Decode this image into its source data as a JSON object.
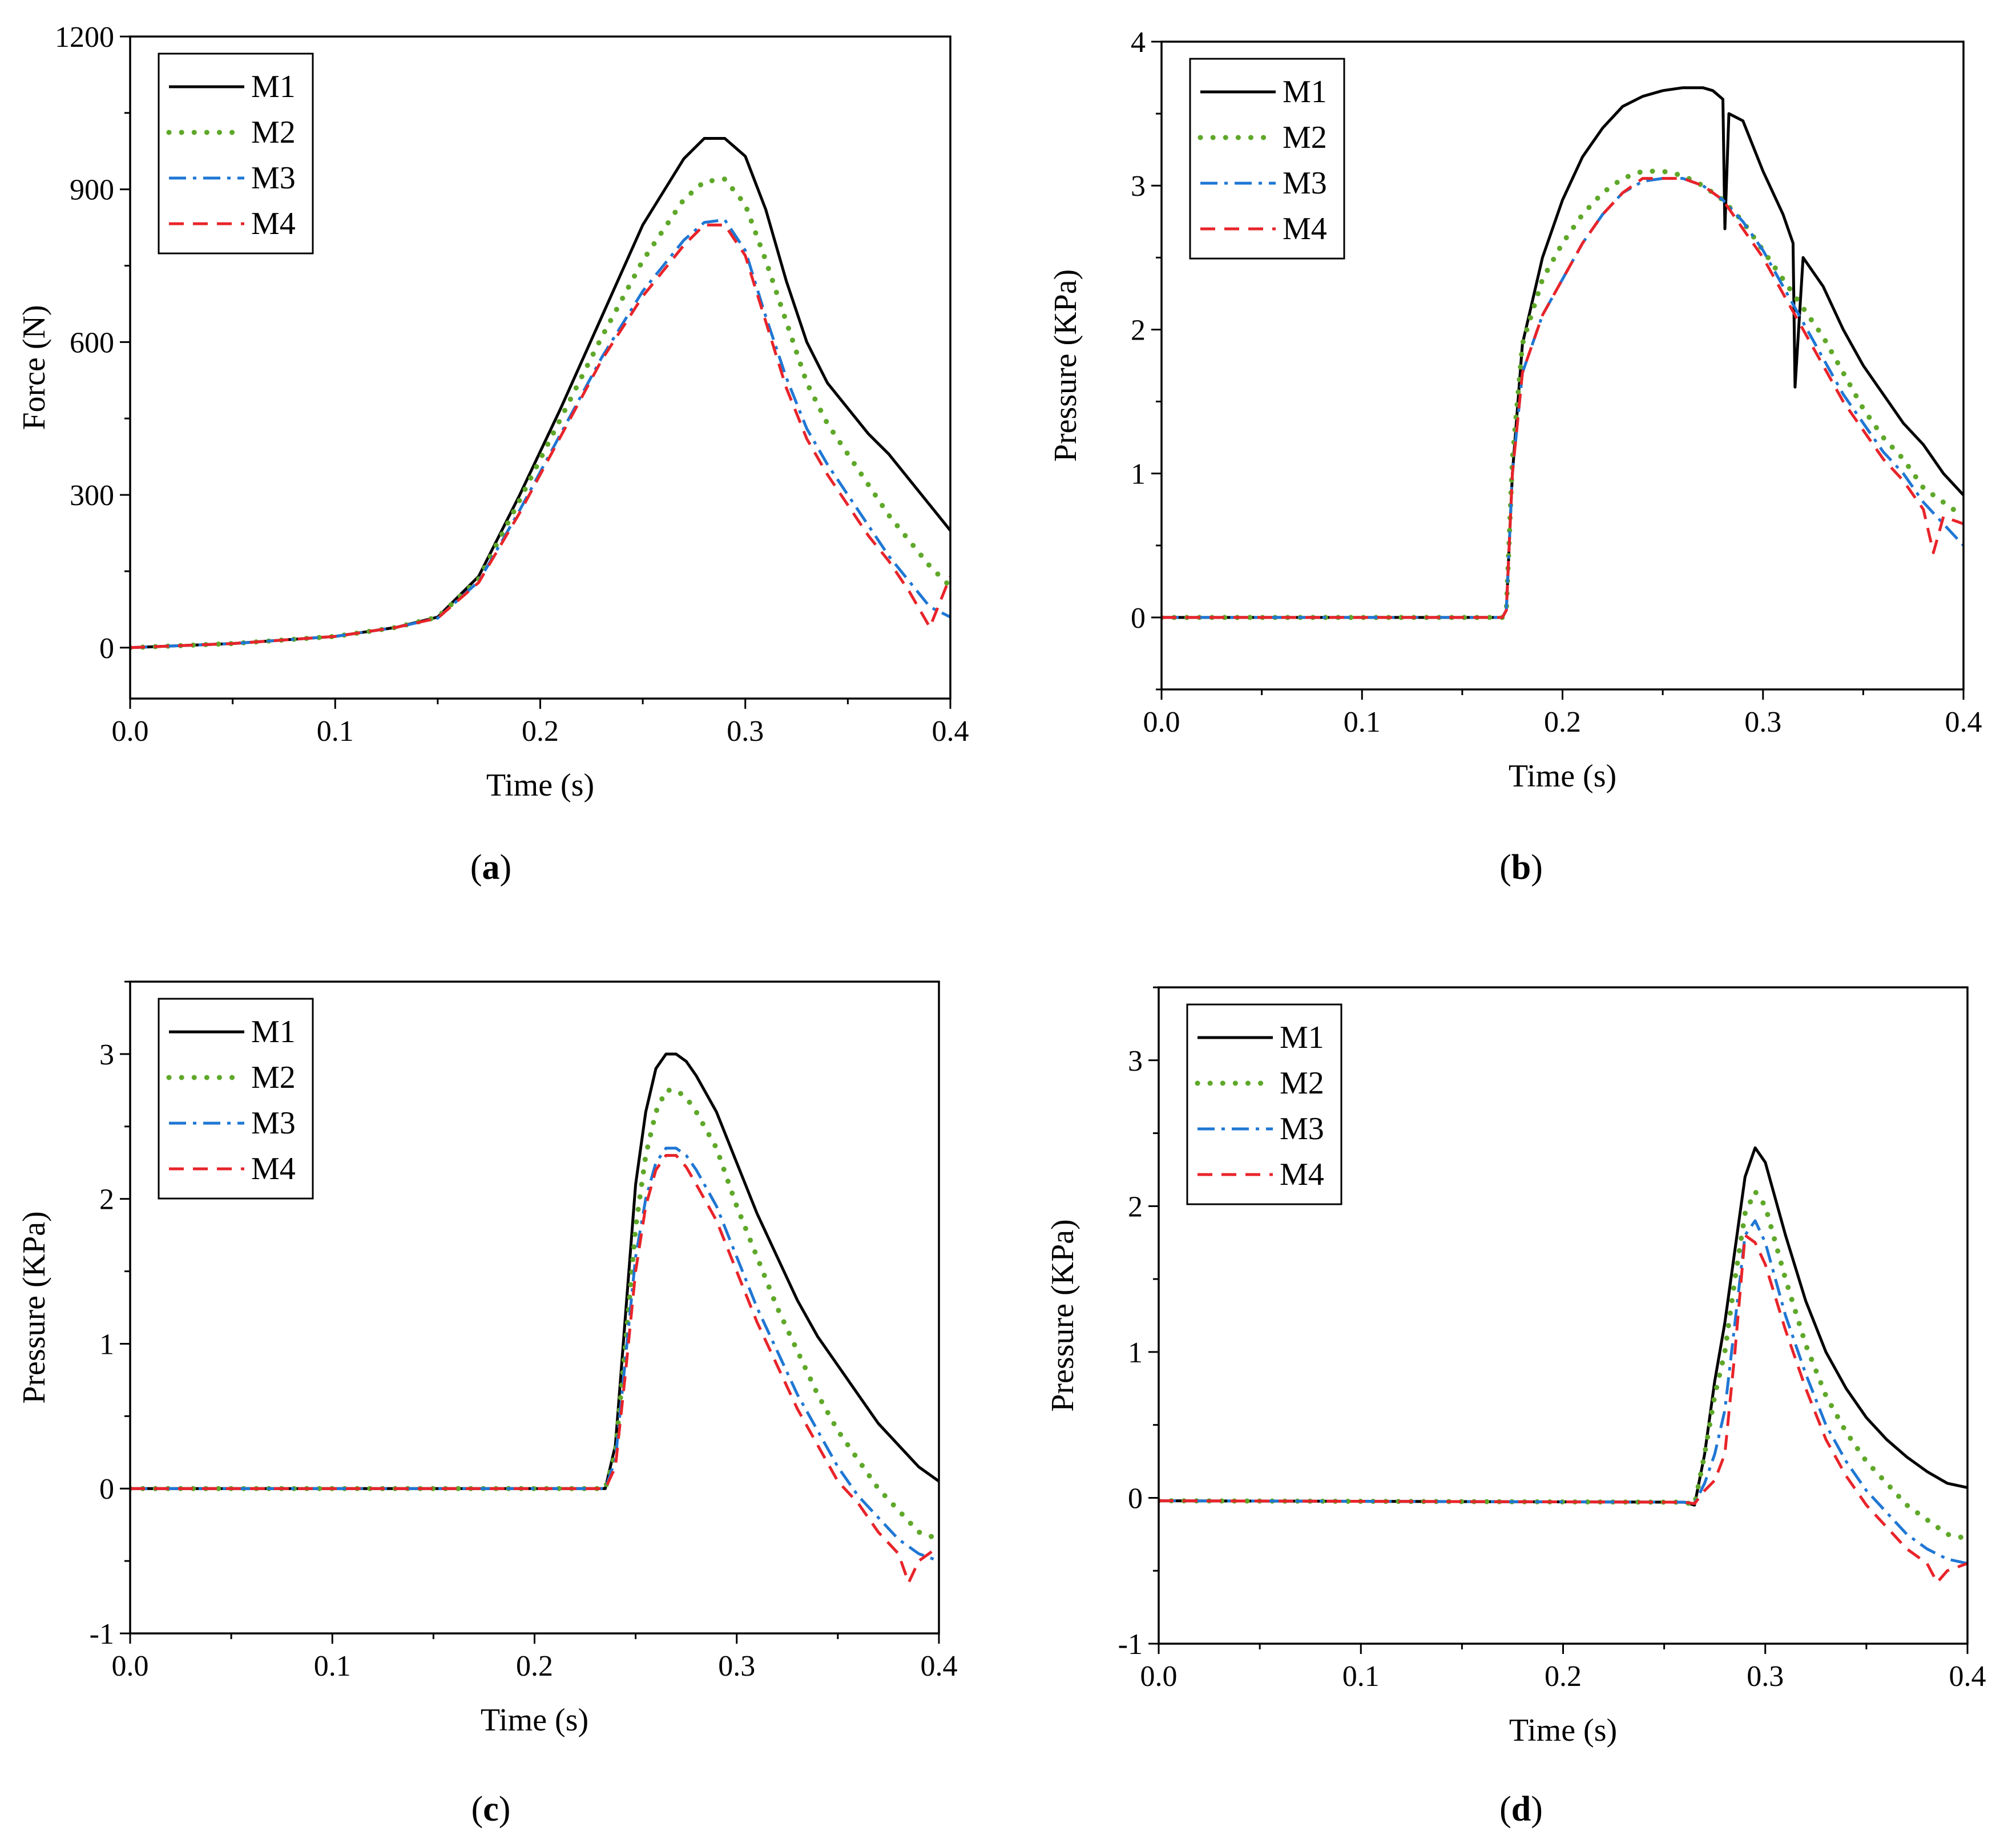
{
  "colors": {
    "M1": "#000000",
    "M2": "#5fa82a",
    "M3": "#1f77d4",
    "M4": "#e8242a"
  },
  "chart_data": [
    {
      "id": "a",
      "type": "line",
      "caption": "(a)",
      "caption_letter": "a",
      "xlabel": "Time (s)",
      "ylabel": "Force (N)",
      "xlim": [
        0,
        0.4
      ],
      "ylim": [
        -100,
        1200
      ],
      "xticks": [
        0.0,
        0.1,
        0.2,
        0.3,
        0.4
      ],
      "xtick_labels": [
        "0.0",
        "0.1",
        "0.2",
        "0.3",
        "0.4"
      ],
      "yticks": [
        0,
        300,
        600,
        900,
        1200
      ],
      "ytick_labels": [
        "0",
        "300",
        "600",
        "900",
        "1200"
      ],
      "legend": [
        "M1",
        "M2",
        "M3",
        "M4"
      ],
      "legend_position": "top-left",
      "series": [
        {
          "name": "M1",
          "x": [
            0,
            0.05,
            0.1,
            0.13,
            0.15,
            0.17,
            0.19,
            0.21,
            0.23,
            0.25,
            0.27,
            0.28,
            0.29,
            0.3,
            0.31,
            0.32,
            0.33,
            0.34,
            0.35,
            0.36,
            0.37,
            0.38,
            0.39,
            0.4
          ],
          "y": [
            0,
            8,
            22,
            40,
            60,
            140,
            300,
            470,
            650,
            830,
            960,
            1000,
            1000,
            965,
            860,
            720,
            600,
            520,
            470,
            420,
            380,
            330,
            280,
            230
          ]
        },
        {
          "name": "M2",
          "x": [
            0,
            0.05,
            0.1,
            0.13,
            0.15,
            0.17,
            0.19,
            0.21,
            0.23,
            0.25,
            0.27,
            0.28,
            0.29,
            0.3,
            0.31,
            0.32,
            0.33,
            0.34,
            0.35,
            0.36,
            0.37,
            0.38,
            0.39,
            0.4
          ],
          "y": [
            0,
            8,
            22,
            40,
            60,
            135,
            290,
            450,
            610,
            760,
            880,
            915,
            920,
            870,
            760,
            640,
            520,
            440,
            380,
            320,
            260,
            210,
            160,
            120
          ]
        },
        {
          "name": "M3",
          "x": [
            0,
            0.05,
            0.1,
            0.13,
            0.15,
            0.17,
            0.19,
            0.21,
            0.23,
            0.25,
            0.27,
            0.28,
            0.29,
            0.3,
            0.31,
            0.32,
            0.33,
            0.34,
            0.35,
            0.36,
            0.37,
            0.38,
            0.39,
            0.4
          ],
          "y": [
            0,
            8,
            22,
            40,
            58,
            130,
            270,
            420,
            570,
            700,
            800,
            835,
            840,
            780,
            650,
            530,
            430,
            360,
            300,
            240,
            180,
            130,
            80,
            60
          ]
        },
        {
          "name": "M4",
          "x": [
            0,
            0.05,
            0.1,
            0.13,
            0.15,
            0.17,
            0.19,
            0.21,
            0.23,
            0.25,
            0.27,
            0.28,
            0.29,
            0.3,
            0.31,
            0.32,
            0.33,
            0.34,
            0.35,
            0.36,
            0.37,
            0.38,
            0.39,
            0.4
          ],
          "y": [
            0,
            8,
            22,
            40,
            58,
            128,
            265,
            415,
            565,
            690,
            790,
            830,
            830,
            770,
            640,
            510,
            410,
            340,
            280,
            220,
            170,
            110,
            40,
            140
          ]
        }
      ]
    },
    {
      "id": "b",
      "type": "line",
      "caption": "(b)",
      "caption_letter": "b",
      "xlabel": "Time (s)",
      "ylabel": "Pressure (KPa)",
      "xlim": [
        0,
        0.4
      ],
      "ylim": [
        -0.5,
        4
      ],
      "xticks": [
        0.0,
        0.1,
        0.2,
        0.3,
        0.4
      ],
      "xtick_labels": [
        "0.0",
        "0.1",
        "0.2",
        "0.3",
        "0.4"
      ],
      "yticks": [
        0,
        1,
        2,
        3,
        4
      ],
      "ytick_labels": [
        "0",
        "1",
        "2",
        "3",
        "4"
      ],
      "legend": [
        "M1",
        "M2",
        "M3",
        "M4"
      ],
      "legend_position": "top-left",
      "series": [
        {
          "name": "M1",
          "x": [
            0,
            0.17,
            0.172,
            0.175,
            0.18,
            0.19,
            0.2,
            0.21,
            0.22,
            0.23,
            0.24,
            0.25,
            0.26,
            0.27,
            0.275,
            0.28,
            0.281,
            0.283,
            0.29,
            0.3,
            0.31,
            0.315,
            0.316,
            0.32,
            0.33,
            0.34,
            0.35,
            0.36,
            0.37,
            0.38,
            0.39,
            0.4
          ],
          "y": [
            0,
            0,
            0.05,
            1.0,
            1.9,
            2.5,
            2.9,
            3.2,
            3.4,
            3.55,
            3.62,
            3.66,
            3.68,
            3.68,
            3.66,
            3.6,
            2.7,
            3.5,
            3.45,
            3.1,
            2.8,
            2.6,
            1.6,
            2.5,
            2.3,
            2.0,
            1.75,
            1.55,
            1.35,
            1.2,
            1.0,
            0.85
          ]
        },
        {
          "name": "M2",
          "x": [
            0,
            0.17,
            0.172,
            0.175,
            0.18,
            0.19,
            0.2,
            0.21,
            0.22,
            0.23,
            0.24,
            0.25,
            0.26,
            0.27,
            0.28,
            0.29,
            0.3,
            0.31,
            0.32,
            0.33,
            0.34,
            0.35,
            0.36,
            0.37,
            0.38,
            0.39,
            0.4
          ],
          "y": [
            0,
            0,
            0.05,
            1.1,
            1.9,
            2.35,
            2.6,
            2.8,
            2.95,
            3.05,
            3.1,
            3.1,
            3.07,
            3.0,
            2.9,
            2.75,
            2.55,
            2.35,
            2.15,
            1.95,
            1.7,
            1.45,
            1.25,
            1.1,
            0.9,
            0.8,
            0.7
          ]
        },
        {
          "name": "M3",
          "x": [
            0,
            0.17,
            0.172,
            0.175,
            0.18,
            0.19,
            0.2,
            0.21,
            0.22,
            0.23,
            0.24,
            0.25,
            0.26,
            0.27,
            0.28,
            0.29,
            0.3,
            0.31,
            0.32,
            0.33,
            0.34,
            0.35,
            0.36,
            0.37,
            0.38,
            0.39,
            0.4
          ],
          "y": [
            0,
            0,
            0.05,
            1.0,
            1.7,
            2.1,
            2.35,
            2.6,
            2.8,
            2.95,
            3.03,
            3.05,
            3.05,
            3.0,
            2.9,
            2.75,
            2.55,
            2.3,
            2.05,
            1.8,
            1.55,
            1.35,
            1.15,
            1.0,
            0.8,
            0.65,
            0.5
          ]
        },
        {
          "name": "M4",
          "x": [
            0,
            0.17,
            0.172,
            0.175,
            0.18,
            0.19,
            0.2,
            0.21,
            0.22,
            0.23,
            0.24,
            0.25,
            0.26,
            0.27,
            0.28,
            0.29,
            0.3,
            0.31,
            0.32,
            0.33,
            0.34,
            0.35,
            0.36,
            0.37,
            0.38,
            0.385,
            0.39,
            0.4
          ],
          "y": [
            0,
            0,
            0.05,
            1.0,
            1.7,
            2.1,
            2.35,
            2.6,
            2.8,
            2.95,
            3.05,
            3.05,
            3.05,
            3.0,
            2.9,
            2.7,
            2.5,
            2.25,
            2.0,
            1.75,
            1.5,
            1.3,
            1.1,
            0.95,
            0.75,
            0.45,
            0.7,
            0.65
          ]
        }
      ]
    },
    {
      "id": "c",
      "type": "line",
      "caption": "(c)",
      "caption_letter": "c",
      "xlabel": "Time (s)",
      "ylabel": "Pressure (KPa)",
      "xlim": [
        0,
        0.4
      ],
      "ylim": [
        -1,
        3.5
      ],
      "xticks": [
        0.0,
        0.1,
        0.2,
        0.3,
        0.4
      ],
      "xtick_labels": [
        "0.0",
        "0.1",
        "0.2",
        "0.3",
        "0.4"
      ],
      "yticks": [
        -1,
        0,
        1,
        2,
        3
      ],
      "ytick_labels": [
        "-1",
        "0",
        "1",
        "2",
        "3"
      ],
      "legend": [
        "M1",
        "M2",
        "M3",
        "M4"
      ],
      "legend_position": "top-left",
      "series": [
        {
          "name": "M1",
          "x": [
            0,
            0.235,
            0.24,
            0.245,
            0.25,
            0.255,
            0.26,
            0.265,
            0.27,
            0.275,
            0.28,
            0.29,
            0.3,
            0.31,
            0.32,
            0.33,
            0.34,
            0.35,
            0.36,
            0.37,
            0.38,
            0.39,
            0.4
          ],
          "y": [
            0,
            0,
            0.3,
            1.2,
            2.1,
            2.6,
            2.9,
            3.0,
            3.0,
            2.95,
            2.85,
            2.6,
            2.25,
            1.9,
            1.6,
            1.3,
            1.05,
            0.85,
            0.65,
            0.45,
            0.3,
            0.15,
            0.05
          ]
        },
        {
          "name": "M2",
          "x": [
            0,
            0.235,
            0.24,
            0.245,
            0.25,
            0.255,
            0.26,
            0.265,
            0.27,
            0.275,
            0.28,
            0.29,
            0.3,
            0.31,
            0.32,
            0.33,
            0.34,
            0.35,
            0.36,
            0.37,
            0.38,
            0.39,
            0.4
          ],
          "y": [
            0,
            0,
            0.25,
            1.0,
            1.8,
            2.3,
            2.6,
            2.75,
            2.75,
            2.7,
            2.6,
            2.35,
            1.95,
            1.6,
            1.25,
            0.95,
            0.65,
            0.4,
            0.2,
            0.0,
            -0.15,
            -0.3,
            -0.35
          ]
        },
        {
          "name": "M3",
          "x": [
            0,
            0.235,
            0.24,
            0.245,
            0.25,
            0.255,
            0.26,
            0.265,
            0.27,
            0.275,
            0.28,
            0.29,
            0.3,
            0.31,
            0.32,
            0.33,
            0.34,
            0.35,
            0.36,
            0.37,
            0.38,
            0.39,
            0.4
          ],
          "y": [
            0,
            0,
            0.2,
            0.9,
            1.6,
            2.0,
            2.25,
            2.35,
            2.35,
            2.3,
            2.2,
            1.95,
            1.6,
            1.25,
            0.95,
            0.65,
            0.4,
            0.15,
            -0.05,
            -0.2,
            -0.35,
            -0.45,
            -0.5
          ]
        },
        {
          "name": "M4",
          "x": [
            0,
            0.235,
            0.24,
            0.245,
            0.25,
            0.255,
            0.26,
            0.265,
            0.27,
            0.275,
            0.28,
            0.29,
            0.3,
            0.31,
            0.32,
            0.33,
            0.34,
            0.35,
            0.36,
            0.37,
            0.38,
            0.385,
            0.39,
            0.4
          ],
          "y": [
            0,
            0,
            0.15,
            0.8,
            1.5,
            1.95,
            2.2,
            2.3,
            2.3,
            2.22,
            2.1,
            1.85,
            1.5,
            1.15,
            0.85,
            0.55,
            0.3,
            0.05,
            -0.1,
            -0.3,
            -0.45,
            -0.65,
            -0.5,
            -0.4
          ]
        }
      ]
    },
    {
      "id": "d",
      "type": "line",
      "caption": "(d)",
      "caption_letter": "d",
      "xlabel": "Time (s)",
      "ylabel": "Pressure (KPa)",
      "xlim": [
        0,
        0.4
      ],
      "ylim": [
        -1,
        3.5
      ],
      "xticks": [
        0.0,
        0.1,
        0.2,
        0.3,
        0.4
      ],
      "xtick_labels": [
        "0.0",
        "0.1",
        "0.2",
        "0.3",
        "0.4"
      ],
      "yticks": [
        -1,
        0,
        1,
        2,
        3
      ],
      "ytick_labels": [
        "-1",
        "0",
        "1",
        "2",
        "3"
      ],
      "legend": [
        "M1",
        "M2",
        "M3",
        "M4"
      ],
      "legend_position": "top-left",
      "series": [
        {
          "name": "M1",
          "x": [
            0,
            0.26,
            0.265,
            0.27,
            0.275,
            0.28,
            0.285,
            0.29,
            0.295,
            0.3,
            0.31,
            0.32,
            0.33,
            0.34,
            0.35,
            0.36,
            0.37,
            0.38,
            0.39,
            0.4
          ],
          "y": [
            -0.02,
            -0.03,
            -0.05,
            0.3,
            0.8,
            1.2,
            1.7,
            2.2,
            2.4,
            2.3,
            1.8,
            1.35,
            1.0,
            0.75,
            0.55,
            0.4,
            0.28,
            0.18,
            0.1,
            0.07
          ]
        },
        {
          "name": "M2",
          "x": [
            0,
            0.26,
            0.265,
            0.27,
            0.275,
            0.28,
            0.285,
            0.29,
            0.295,
            0.3,
            0.31,
            0.32,
            0.33,
            0.34,
            0.35,
            0.36,
            0.37,
            0.38,
            0.39,
            0.4
          ],
          "y": [
            -0.02,
            -0.03,
            -0.05,
            0.3,
            0.7,
            1.0,
            1.5,
            1.95,
            2.1,
            2.0,
            1.5,
            1.05,
            0.7,
            0.45,
            0.25,
            0.1,
            -0.05,
            -0.15,
            -0.25,
            -0.28
          ]
        },
        {
          "name": "M3",
          "x": [
            0,
            0.26,
            0.265,
            0.27,
            0.275,
            0.28,
            0.285,
            0.29,
            0.295,
            0.3,
            0.31,
            0.32,
            0.33,
            0.34,
            0.35,
            0.36,
            0.37,
            0.38,
            0.39,
            0.4
          ],
          "y": [
            -0.02,
            -0.03,
            -0.04,
            0.1,
            0.3,
            0.6,
            1.2,
            1.8,
            1.9,
            1.75,
            1.25,
            0.85,
            0.5,
            0.25,
            0.05,
            -0.1,
            -0.25,
            -0.35,
            -0.42,
            -0.45
          ]
        },
        {
          "name": "M4",
          "x": [
            0,
            0.26,
            0.265,
            0.27,
            0.275,
            0.28,
            0.285,
            0.29,
            0.295,
            0.3,
            0.31,
            0.32,
            0.33,
            0.34,
            0.35,
            0.36,
            0.37,
            0.38,
            0.385,
            0.39,
            0.4
          ],
          "y": [
            -0.02,
            -0.03,
            -0.04,
            0.05,
            0.12,
            0.3,
            1.0,
            1.8,
            1.75,
            1.6,
            1.15,
            0.75,
            0.4,
            0.15,
            -0.05,
            -0.2,
            -0.35,
            -0.45,
            -0.58,
            -0.5,
            -0.45
          ]
        }
      ]
    }
  ]
}
